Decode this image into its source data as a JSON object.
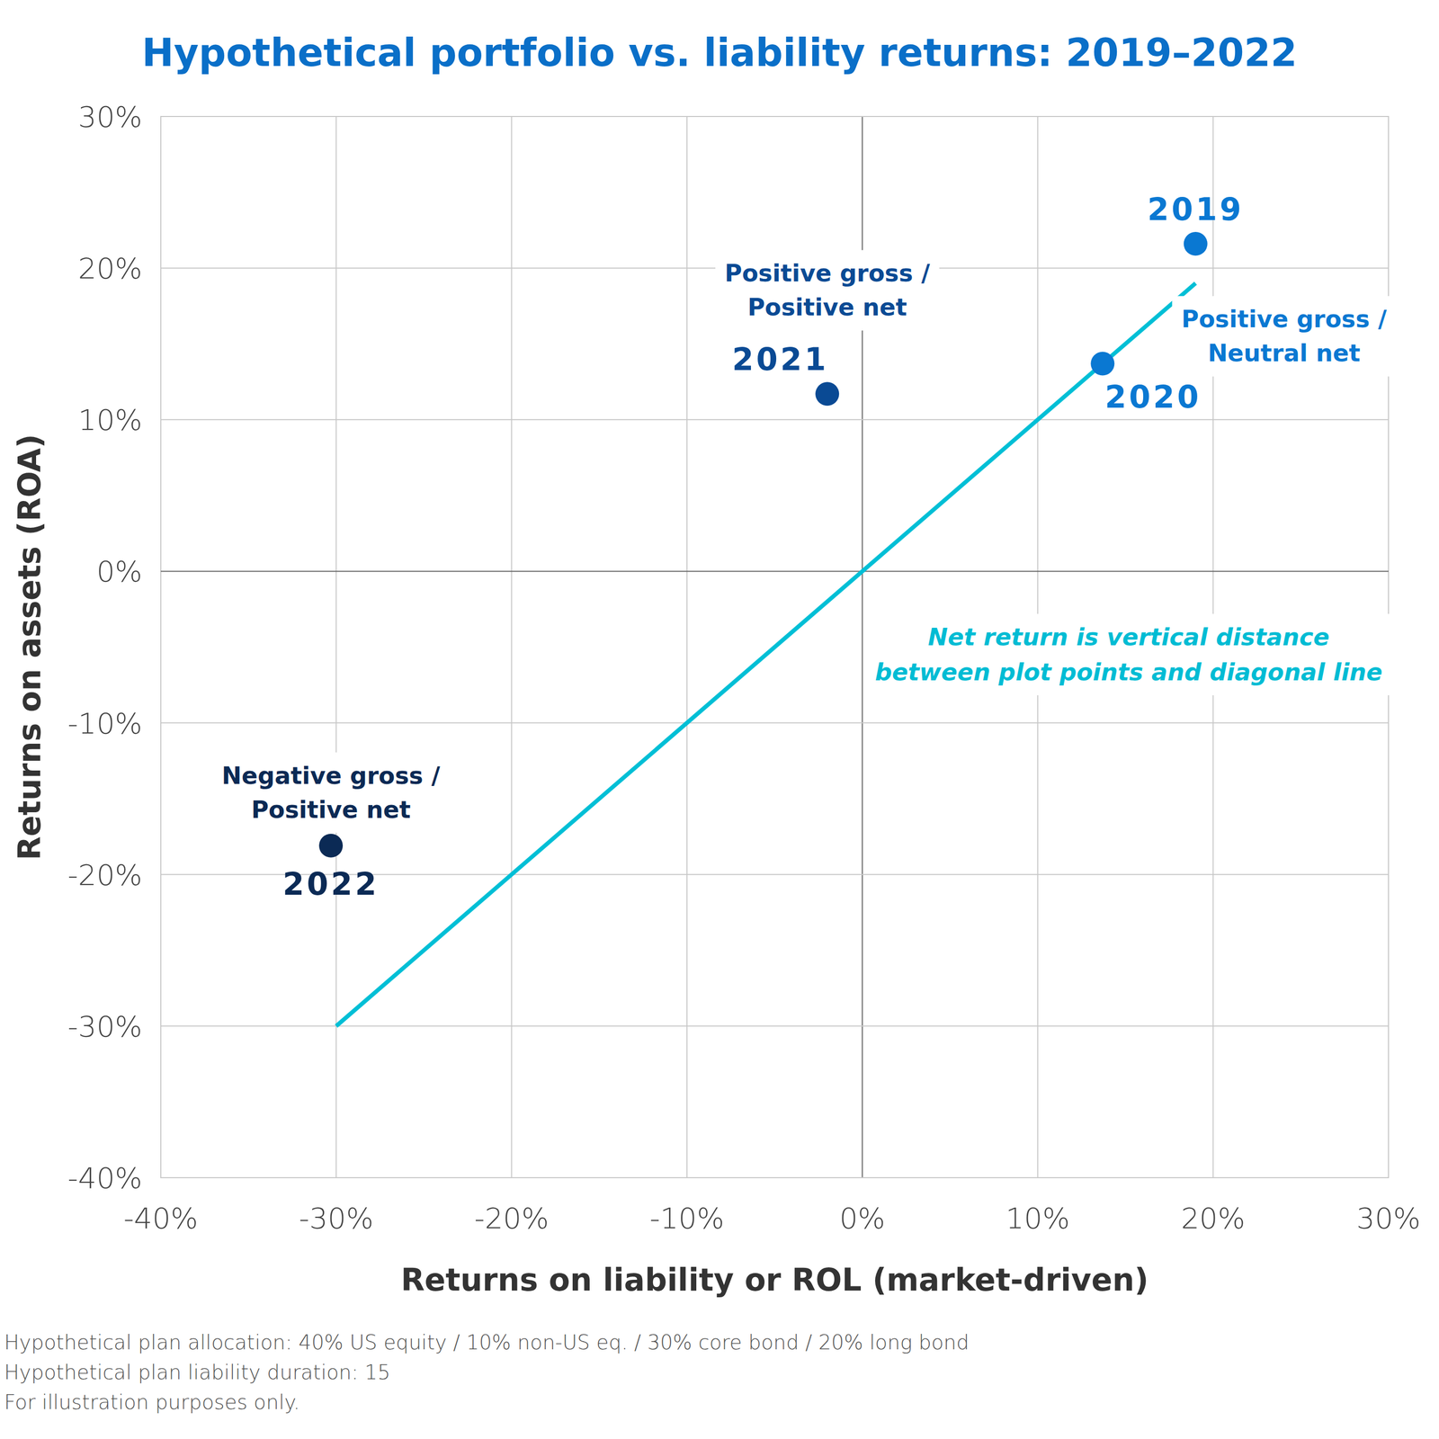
{
  "chart_data": {
    "type": "scatter",
    "title": "Hypothetical portfolio vs. liability returns: 2019–2022",
    "x_label": "Returns on liability or ROL (market-driven)",
    "y_label": "Returns on assets (ROA)",
    "xlim": [
      -40,
      30
    ],
    "ylim": [
      -40,
      30
    ],
    "xticks": [
      {
        "value": -40,
        "label": "-40%"
      },
      {
        "value": -30,
        "label": "-30%"
      },
      {
        "value": -20,
        "label": "-20%"
      },
      {
        "value": -10,
        "label": "-10%"
      },
      {
        "value": 0,
        "label": "0%"
      },
      {
        "value": 10,
        "label": "10%"
      },
      {
        "value": 20,
        "label": "20%"
      },
      {
        "value": 30,
        "label": "30%"
      }
    ],
    "yticks": [
      {
        "value": -40,
        "label": "-40%"
      },
      {
        "value": -30,
        "label": "-30%"
      },
      {
        "value": -20,
        "label": "-20%"
      },
      {
        "value": -10,
        "label": "-10%"
      },
      {
        "value": 0,
        "label": "0%"
      },
      {
        "value": 10,
        "label": "10%"
      },
      {
        "value": 20,
        "label": "20%"
      },
      {
        "value": 30,
        "label": "30%"
      }
    ],
    "grid": true,
    "series": [
      {
        "type": "scatter",
        "marker": "circle",
        "x": [
          19.0,
          13.7,
          -2.0,
          -30.3
        ],
        "values": [
          21.6,
          13.7,
          11.7,
          -18.1
        ],
        "colors": [
          "#0a78d2",
          "#0a78d2",
          "#0a4a94",
          "#0b2a55"
        ],
        "labels": [
          "2019",
          "2020",
          "2021",
          "2022"
        ],
        "annotations": [
          null,
          [
            "Positive gross /",
            "Neutral net"
          ],
          [
            "Positive gross /",
            "Positive net"
          ],
          [
            "Negative gross /",
            "Positive net"
          ]
        ]
      },
      {
        "type": "line",
        "line_style": "solid",
        "color": "#00bfd6",
        "x": [
          -30,
          19
        ],
        "values": [
          -30,
          19
        ]
      }
    ],
    "note": [
      "Net return is vertical distance",
      "between plot points and diagonal line"
    ],
    "footnotes": [
      "Hypothetical plan allocation: 40% US equity / 10% non-US eq. / 30% core bond / 20% long bond",
      "Hypothetical plan liability duration: 15",
      "For illustration purposes only."
    ]
  }
}
